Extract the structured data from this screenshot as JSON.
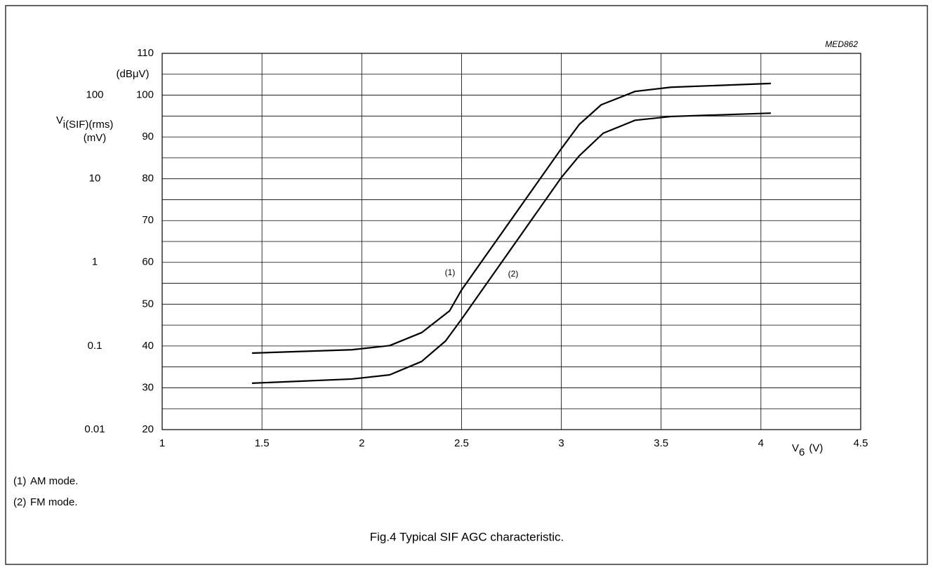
{
  "chart_data": {
    "type": "line",
    "code": "MED862",
    "caption": "Fig.4  Typical SIF AGC characteristic.",
    "ylabel": "(dBμV)",
    "y2label": "V",
    "y2label_sub": "i(SIF)(rms)",
    "y2unit": "(mV)",
    "xlabel": "V",
    "xlabel_sub": "6",
    "xunit": "(V)",
    "xlim": [
      1,
      4.5
    ],
    "xticks": [
      1,
      1.5,
      2,
      2.5,
      3,
      3.5,
      4,
      4.5
    ],
    "ylim": [
      20,
      110
    ],
    "yticks": [
      20,
      30,
      40,
      50,
      60,
      70,
      80,
      90,
      100,
      110
    ],
    "y_minor_gridlines": [
      25,
      35,
      45,
      55,
      65,
      75,
      85,
      95,
      105
    ],
    "y2lim": [
      0.01,
      316.2
    ],
    "y2_log_scale": true,
    "y2ticks": [
      0.01,
      0.1,
      1,
      10,
      100
    ],
    "grid": true,
    "series": [
      {
        "name": "(1)",
        "color": "#000000",
        "x": [
          1.45,
          1.95,
          2.14,
          2.3,
          2.44,
          2.5,
          3.0,
          3.09,
          3.2,
          3.37,
          3.55,
          4.05
        ],
        "values": [
          38.3,
          39.1,
          40.1,
          43.2,
          48.4,
          53.4,
          87.2,
          93.0,
          97.7,
          100.9,
          101.9,
          102.8
        ]
      },
      {
        "name": "(2)",
        "color": "#000000",
        "x": [
          1.45,
          1.95,
          2.14,
          2.3,
          2.42,
          2.5,
          3.0,
          3.09,
          3.21,
          3.37,
          3.55,
          4.05
        ],
        "values": [
          31.1,
          32.1,
          33.1,
          36.3,
          41.2,
          46.4,
          80.3,
          85.5,
          90.9,
          94.0,
          94.9,
          95.7
        ]
      }
    ],
    "notes": [
      {
        "key": "(1)",
        "text": "AM mode."
      },
      {
        "key": "(2)",
        "text": "FM mode."
      }
    ]
  }
}
